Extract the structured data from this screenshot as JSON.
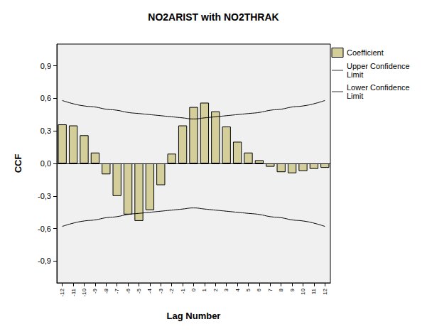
{
  "chart_data": {
    "type": "bar",
    "title": "NO2ARIST with NO2THRAK",
    "x_label": "Lag Number",
    "y_label": "CCF",
    "categories": [
      "-12",
      "-11",
      "-10",
      "-9",
      "-8",
      "-7",
      "-6",
      "-5",
      "-4",
      "-3",
      "-2",
      "-1",
      "0",
      "1",
      "2",
      "3",
      "4",
      "5",
      "6",
      "7",
      "8",
      "9",
      "10",
      "11",
      "12"
    ],
    "series": [
      {
        "name": "Coefficient",
        "type": "bar",
        "color": "#d3ce9a",
        "values": [
          0.36,
          0.35,
          0.26,
          0.1,
          -0.1,
          -0.3,
          -0.47,
          -0.53,
          -0.43,
          -0.2,
          0.09,
          0.35,
          0.52,
          0.56,
          0.48,
          0.34,
          0.2,
          0.1,
          0.03,
          -0.03,
          -0.08,
          -0.09,
          -0.07,
          -0.05,
          -0.04
        ]
      },
      {
        "name": "Upper Confidence Limit",
        "type": "line",
        "color": "#000000",
        "values": [
          0.58,
          0.55,
          0.53,
          0.52,
          0.5,
          0.49,
          0.47,
          0.46,
          0.45,
          0.44,
          0.43,
          0.42,
          0.41,
          0.42,
          0.43,
          0.44,
          0.45,
          0.46,
          0.47,
          0.49,
          0.5,
          0.52,
          0.53,
          0.55,
          0.58
        ]
      },
      {
        "name": "Lower Confidence Limit",
        "type": "line",
        "color": "#000000",
        "values": [
          -0.58,
          -0.55,
          -0.53,
          -0.52,
          -0.5,
          -0.49,
          -0.47,
          -0.46,
          -0.45,
          -0.44,
          -0.43,
          -0.42,
          -0.41,
          -0.42,
          -0.43,
          -0.44,
          -0.45,
          -0.46,
          -0.47,
          -0.49,
          -0.5,
          -0.52,
          -0.53,
          -0.55,
          -0.58
        ]
      }
    ],
    "ylim": [
      -1.1,
      1.1
    ],
    "yticks": [
      {
        "value": -0.9,
        "label": "-0,9"
      },
      {
        "value": -0.6,
        "label": "-0,6"
      },
      {
        "value": -0.3,
        "label": "-0,3"
      },
      {
        "value": 0,
        "label": "0,0"
      },
      {
        "value": 0.3,
        "label": "0,3"
      },
      {
        "value": 0.6,
        "label": "0,6"
      },
      {
        "value": 0.9,
        "label": "0,9"
      }
    ],
    "grid": false,
    "legend": "right"
  }
}
